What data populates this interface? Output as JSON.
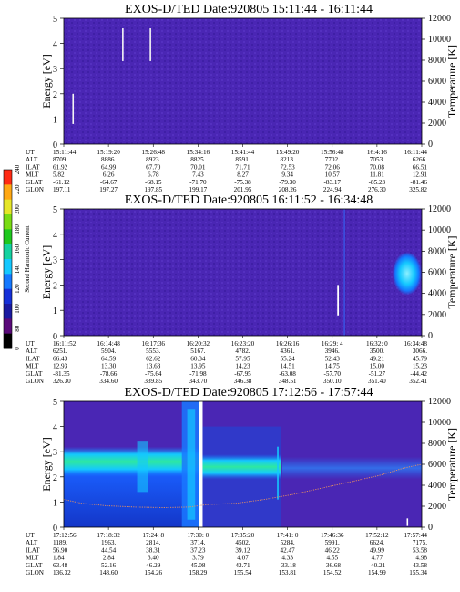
{
  "colorbar": {
    "label": "Second Harmonic Current",
    "ticks": [
      "0",
      "80",
      "100",
      "120",
      "140",
      "160",
      "180",
      "200",
      "220",
      "240"
    ],
    "colors": [
      "#000000",
      "#5a0a7a",
      "#1a1aa0",
      "#1530d8",
      "#1478ff",
      "#14c8ff",
      "#14d2a0",
      "#1ec81e",
      "#7adc14",
      "#e6e628",
      "#ffa814",
      "#ff2a14"
    ]
  },
  "eph_labels": [
    "UT",
    "ALT",
    "ILAT",
    "MLT",
    "GLAT",
    "GLON"
  ],
  "chart_data": [
    {
      "type": "heatmap",
      "title": "EXOS-D/TED   Date:920805   15:11:44 - 16:11:44",
      "ylabel": "Energy [eV]",
      "y2label": "Temperature [K]",
      "ylim": [
        0,
        5
      ],
      "y2lim": [
        0,
        12000
      ],
      "yticks": [
        "0",
        "1",
        "2",
        "3",
        "4",
        "5"
      ],
      "y2ticks": [
        "0",
        "2000",
        "4000",
        "6000",
        "8000",
        "10000",
        "12000"
      ],
      "ephemeris": {
        "UT": [
          "15:11:44",
          "15:19:20",
          "15:26:48",
          "15:34:16",
          "15:41:44",
          "15:49:20",
          "15:56:48",
          "16:4:16",
          "16:11:44"
        ],
        "ALT": [
          "8709.",
          "8886.",
          "8923.",
          "8825.",
          "8591.",
          "8213.",
          "7702.",
          "7053.",
          "6266."
        ],
        "ILAT": [
          "61.92",
          "64.99",
          "67.70",
          "70.01",
          "71.71",
          "72.53",
          "72.06",
          "70.08",
          "66.51"
        ],
        "MLT": [
          "5.82",
          "6.26",
          "6.78",
          "7.43",
          "8.27",
          "9.34",
          "10.57",
          "11.81",
          "12.91"
        ],
        "GLAT": [
          "-61.12",
          "-64.67",
          "-68.15",
          "-71.70",
          "-75.38",
          "-79.30",
          "-83.17",
          "-85.23",
          "-81.46"
        ],
        "GLON": [
          "197.11",
          "197.27",
          "197.85",
          "199.17",
          "201.95",
          "208.26",
          "224.94",
          "276.30",
          "325.82"
        ]
      }
    },
    {
      "type": "heatmap",
      "title": "EXOS-D/TED   Date:920805   16:11:52 - 16:34:48",
      "ylabel": "Energy [eV]",
      "y2label": "Temperature [K]",
      "ylim": [
        0,
        5
      ],
      "y2lim": [
        0,
        12000
      ],
      "yticks": [
        "0",
        "1",
        "2",
        "3",
        "4",
        "5"
      ],
      "y2ticks": [
        "0",
        "2000",
        "4000",
        "6000",
        "8000",
        "10000",
        "12000"
      ],
      "ephemeris": {
        "UT": [
          "16:11:52",
          "16:14:48",
          "16:17:36",
          "16:20:32",
          "16:23:20",
          "16:26:16",
          "16:29: 4",
          "16:32: 0",
          "16:34:48"
        ],
        "ALT": [
          "6251.",
          "5904.",
          "5553.",
          "5167.",
          "4782.",
          "4361.",
          "3946.",
          "3500.",
          "3066."
        ],
        "ILAT": [
          "66.43",
          "64.59",
          "62.62",
          "60.34",
          "57.95",
          "55.24",
          "52.43",
          "49.21",
          "45.79"
        ],
        "MLT": [
          "12.93",
          "13.30",
          "13.63",
          "13.95",
          "14.23",
          "14.51",
          "14.75",
          "15.00",
          "15.23"
        ],
        "GLAT": [
          "-81.35",
          "-78.66",
          "-75.64",
          "-71.98",
          "-67.95",
          "-63.08",
          "-57.70",
          "-51.27",
          "-44.42"
        ],
        "GLON": [
          "326.30",
          "334.60",
          "339.85",
          "343.70",
          "346.38",
          "348.51",
          "350.10",
          "351.40",
          "352.41"
        ]
      }
    },
    {
      "type": "heatmap",
      "title": "EXOS-D/TED   Date:920805   17:12:56 - 17:57:44",
      "ylabel": "Energy [eV]",
      "y2label": "Temperature [K]",
      "ylim": [
        0,
        5
      ],
      "y2lim": [
        0,
        12000
      ],
      "yticks": [
        "0",
        "1",
        "2",
        "3",
        "4",
        "5"
      ],
      "y2ticks": [
        "0",
        "2000",
        "4000",
        "6000",
        "8000",
        "10000",
        "12000"
      ],
      "ephemeris": {
        "UT": [
          "17:12:56",
          "17:18:32",
          "17:24: 8",
          "17:30: 0",
          "17:35:20",
          "17:41: 0",
          "17:46:36",
          "17:52:12",
          "17:57:44"
        ],
        "ALT": [
          "1189.",
          "1963.",
          "2814.",
          "3714.",
          "4502.",
          "5284.",
          "5991.",
          "6624.",
          "7175."
        ],
        "ILAT": [
          "56.90",
          "44.54",
          "38.31",
          "37.23",
          "39.12",
          "42.47",
          "46.22",
          "49.99",
          "53.58"
        ],
        "MLT": [
          "1.84",
          "2.84",
          "3.40",
          "3.79",
          "4.07",
          "4.33",
          "4.55",
          "4.77",
          "4.98"
        ],
        "GLAT": [
          "63.48",
          "52.16",
          "46.29",
          "45.08",
          "42.71",
          "-33.18",
          "-36.68",
          "-40.21",
          "-43.58"
        ],
        "GLON": [
          "136.32",
          "148.60",
          "154.26",
          "158.29",
          "155.54",
          "153.81",
          "154.52",
          "154.99",
          "155.34"
        ]
      }
    }
  ]
}
